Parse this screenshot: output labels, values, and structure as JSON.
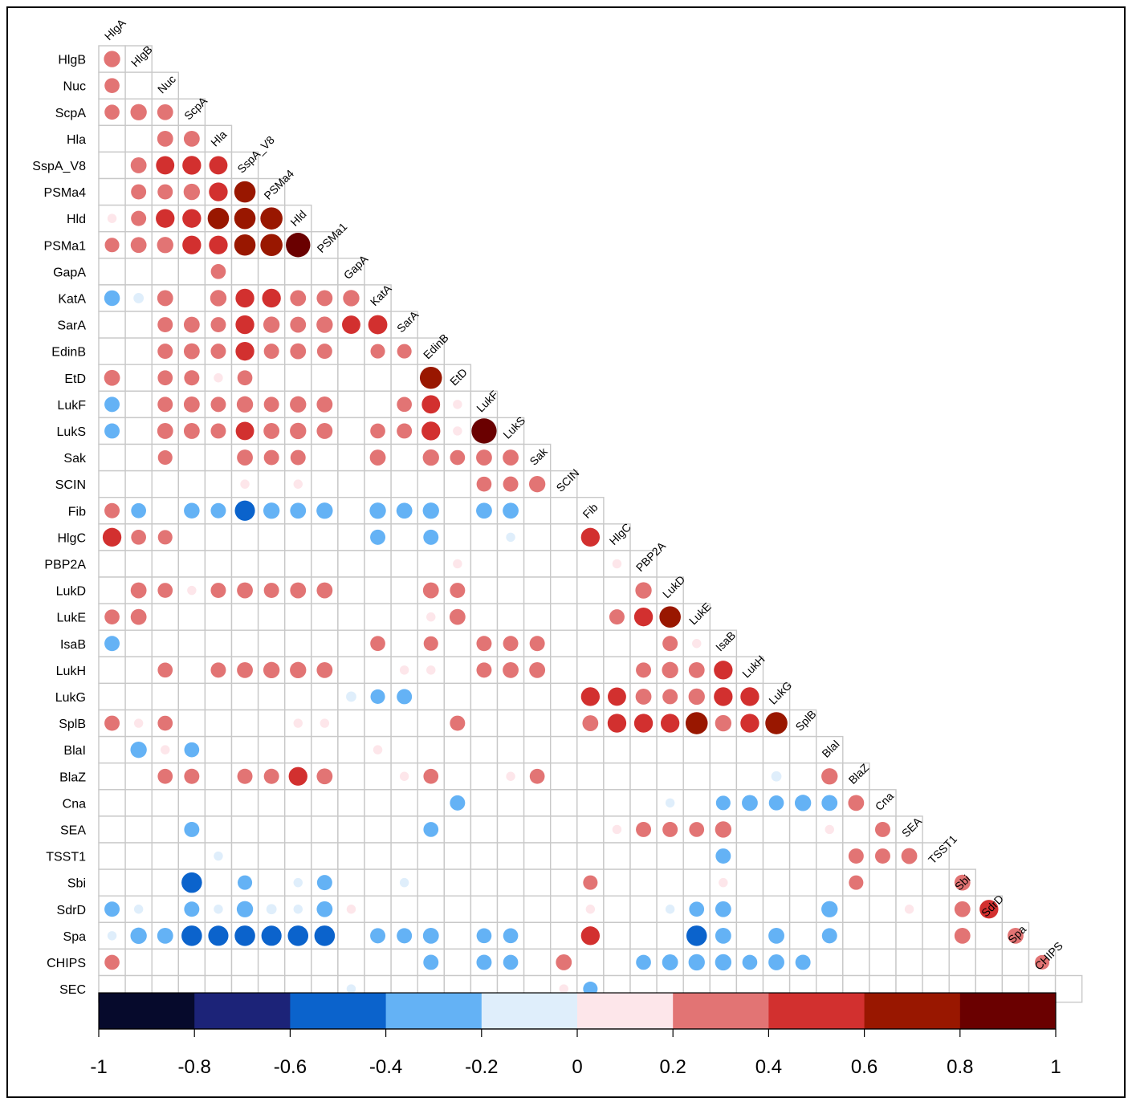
{
  "chart_data": {
    "type": "heatmap",
    "style": "correlation-matrix-lower-triangle-circles",
    "title": "",
    "row_labels": [
      "HlgB",
      "Nuc",
      "ScpA",
      "Hla",
      "SspA_V8",
      "PSMa4",
      "Hld",
      "PSMa1",
      "GapA",
      "KatA",
      "SarA",
      "EdinB",
      "EtD",
      "LukF",
      "LukS",
      "Sak",
      "SCIN",
      "Fib",
      "HlgC",
      "PBP2A",
      "LukD",
      "LukE",
      "IsaB",
      "LukH",
      "LukG",
      "SplB",
      "BlaI",
      "BlaZ",
      "Cna",
      "SEA",
      "TSST1",
      "Sbi",
      "SdrD",
      "Spa",
      "CHIPS",
      "SEC"
    ],
    "col_labels": [
      "HlgA",
      "HlgB",
      "Nuc",
      "ScpA",
      "Hla",
      "SspA_V8",
      "PSMa4",
      "Hld",
      "PSMa1",
      "GapA",
      "KatA",
      "SarA",
      "EdinB",
      "EtD",
      "LukF",
      "LukS",
      "Sak",
      "SCIN",
      "Fib",
      "HlgC",
      "PBP2A",
      "LukD",
      "LukE",
      "IsaB",
      "LukH",
      "LukG",
      "SplB",
      "BlaI",
      "BlaZ",
      "Cna",
      "SEA",
      "TSST1",
      "Sbi",
      "SdrD",
      "Spa",
      "CHIPS"
    ],
    "cells": [
      [
        0,
        0,
        0.38
      ],
      [
        1,
        0,
        0.32
      ],
      [
        2,
        0,
        0.32
      ],
      [
        2,
        1,
        0.38
      ],
      [
        2,
        2,
        0.36
      ],
      [
        3,
        2,
        0.36
      ],
      [
        3,
        3,
        0.36
      ],
      [
        4,
        1,
        0.36
      ],
      [
        4,
        2,
        0.48
      ],
      [
        4,
        3,
        0.5
      ],
      [
        4,
        4,
        0.48
      ],
      [
        5,
        1,
        0.33
      ],
      [
        5,
        2,
        0.33
      ],
      [
        5,
        3,
        0.38
      ],
      [
        5,
        4,
        0.5
      ],
      [
        5,
        5,
        0.65
      ],
      [
        6,
        0,
        0.12
      ],
      [
        6,
        1,
        0.33
      ],
      [
        6,
        2,
        0.5
      ],
      [
        6,
        3,
        0.5
      ],
      [
        6,
        4,
        0.65
      ],
      [
        6,
        5,
        0.65
      ],
      [
        6,
        6,
        0.7
      ],
      [
        7,
        0,
        0.3
      ],
      [
        7,
        1,
        0.36
      ],
      [
        7,
        2,
        0.38
      ],
      [
        7,
        3,
        0.5
      ],
      [
        7,
        4,
        0.5
      ],
      [
        7,
        5,
        0.65
      ],
      [
        7,
        6,
        0.7
      ],
      [
        7,
        7,
        0.85
      ],
      [
        8,
        4,
        0.32
      ],
      [
        9,
        0,
        -0.35
      ],
      [
        9,
        1,
        -0.15
      ],
      [
        9,
        2,
        0.36
      ],
      [
        9,
        4,
        0.38
      ],
      [
        9,
        5,
        0.5
      ],
      [
        9,
        6,
        0.5
      ],
      [
        9,
        7,
        0.36
      ],
      [
        9,
        8,
        0.36
      ],
      [
        9,
        9,
        0.38
      ],
      [
        10,
        2,
        0.33
      ],
      [
        10,
        3,
        0.36
      ],
      [
        10,
        4,
        0.33
      ],
      [
        10,
        5,
        0.5
      ],
      [
        10,
        6,
        0.38
      ],
      [
        10,
        7,
        0.36
      ],
      [
        10,
        8,
        0.38
      ],
      [
        10,
        9,
        0.48
      ],
      [
        10,
        10,
        0.52
      ],
      [
        11,
        2,
        0.33
      ],
      [
        11,
        3,
        0.36
      ],
      [
        11,
        4,
        0.33
      ],
      [
        11,
        5,
        0.5
      ],
      [
        11,
        6,
        0.33
      ],
      [
        11,
        7,
        0.36
      ],
      [
        11,
        8,
        0.33
      ],
      [
        11,
        10,
        0.3
      ],
      [
        11,
        11,
        0.3
      ],
      [
        12,
        0,
        0.36
      ],
      [
        12,
        2,
        0.32
      ],
      [
        12,
        3,
        0.33
      ],
      [
        12,
        4,
        0.12
      ],
      [
        12,
        5,
        0.32
      ],
      [
        12,
        12,
        0.7
      ],
      [
        13,
        0,
        -0.33
      ],
      [
        13,
        2,
        0.33
      ],
      [
        13,
        3,
        0.36
      ],
      [
        13,
        4,
        0.33
      ],
      [
        13,
        5,
        0.38
      ],
      [
        13,
        6,
        0.33
      ],
      [
        13,
        7,
        0.38
      ],
      [
        13,
        8,
        0.36
      ],
      [
        13,
        11,
        0.32
      ],
      [
        13,
        12,
        0.48
      ],
      [
        13,
        13,
        0.12
      ],
      [
        14,
        0,
        -0.33
      ],
      [
        14,
        2,
        0.36
      ],
      [
        14,
        3,
        0.36
      ],
      [
        14,
        4,
        0.33
      ],
      [
        14,
        5,
        0.48
      ],
      [
        14,
        6,
        0.36
      ],
      [
        14,
        7,
        0.38
      ],
      [
        14,
        8,
        0.36
      ],
      [
        14,
        10,
        0.32
      ],
      [
        14,
        11,
        0.33
      ],
      [
        14,
        12,
        0.5
      ],
      [
        14,
        13,
        0.12
      ],
      [
        14,
        14,
        0.9
      ],
      [
        15,
        2,
        0.3
      ],
      [
        15,
        5,
        0.36
      ],
      [
        15,
        6,
        0.33
      ],
      [
        15,
        7,
        0.33
      ],
      [
        15,
        10,
        0.36
      ],
      [
        15,
        12,
        0.38
      ],
      [
        15,
        13,
        0.32
      ],
      [
        15,
        14,
        0.36
      ],
      [
        15,
        15,
        0.36
      ],
      [
        16,
        5,
        0.12
      ],
      [
        16,
        7,
        0.12
      ],
      [
        16,
        14,
        0.32
      ],
      [
        16,
        15,
        0.33
      ],
      [
        16,
        16,
        0.38
      ],
      [
        17,
        0,
        0.33
      ],
      [
        17,
        1,
        -0.32
      ],
      [
        17,
        3,
        -0.35
      ],
      [
        17,
        4,
        -0.33
      ],
      [
        17,
        5,
        -0.58
      ],
      [
        17,
        6,
        -0.38
      ],
      [
        17,
        7,
        -0.36
      ],
      [
        17,
        8,
        -0.38
      ],
      [
        17,
        10,
        -0.38
      ],
      [
        17,
        11,
        -0.36
      ],
      [
        17,
        12,
        -0.38
      ],
      [
        17,
        14,
        -0.36
      ],
      [
        17,
        15,
        -0.36
      ],
      [
        18,
        0,
        0.5
      ],
      [
        18,
        1,
        0.32
      ],
      [
        18,
        2,
        0.3
      ],
      [
        18,
        10,
        -0.33
      ],
      [
        18,
        12,
        -0.33
      ],
      [
        18,
        15,
        -0.12
      ],
      [
        18,
        18,
        0.5
      ],
      [
        19,
        13,
        0.12
      ],
      [
        19,
        19,
        0.12
      ],
      [
        20,
        1,
        0.36
      ],
      [
        20,
        2,
        0.32
      ],
      [
        20,
        3,
        0.12
      ],
      [
        20,
        4,
        0.33
      ],
      [
        20,
        5,
        0.36
      ],
      [
        20,
        6,
        0.33
      ],
      [
        20,
        7,
        0.36
      ],
      [
        20,
        8,
        0.36
      ],
      [
        20,
        12,
        0.36
      ],
      [
        20,
        13,
        0.33
      ],
      [
        20,
        20,
        0.38
      ],
      [
        21,
        0,
        0.32
      ],
      [
        21,
        1,
        0.36
      ],
      [
        21,
        12,
        0.12
      ],
      [
        21,
        13,
        0.36
      ],
      [
        21,
        19,
        0.33
      ],
      [
        21,
        20,
        0.5
      ],
      [
        21,
        21,
        0.65
      ],
      [
        22,
        0,
        -0.33
      ],
      [
        22,
        10,
        0.32
      ],
      [
        22,
        12,
        0.3
      ],
      [
        22,
        14,
        0.33
      ],
      [
        22,
        15,
        0.33
      ],
      [
        22,
        16,
        0.33
      ],
      [
        22,
        21,
        0.33
      ],
      [
        22,
        22,
        0.12
      ],
      [
        23,
        2,
        0.32
      ],
      [
        23,
        4,
        0.33
      ],
      [
        23,
        5,
        0.36
      ],
      [
        23,
        6,
        0.38
      ],
      [
        23,
        7,
        0.38
      ],
      [
        23,
        8,
        0.36
      ],
      [
        23,
        11,
        0.12
      ],
      [
        23,
        12,
        0.12
      ],
      [
        23,
        14,
        0.33
      ],
      [
        23,
        15,
        0.36
      ],
      [
        23,
        16,
        0.36
      ],
      [
        23,
        20,
        0.33
      ],
      [
        23,
        21,
        0.38
      ],
      [
        23,
        22,
        0.36
      ],
      [
        23,
        23,
        0.5
      ],
      [
        24,
        9,
        -0.15
      ],
      [
        24,
        10,
        -0.3
      ],
      [
        24,
        11,
        -0.33
      ],
      [
        24,
        18,
        0.5
      ],
      [
        24,
        19,
        0.48
      ],
      [
        24,
        20,
        0.36
      ],
      [
        24,
        21,
        0.33
      ],
      [
        24,
        22,
        0.38
      ],
      [
        24,
        23,
        0.5
      ],
      [
        24,
        24,
        0.5
      ],
      [
        25,
        0,
        0.33
      ],
      [
        25,
        1,
        0.12
      ],
      [
        25,
        2,
        0.32
      ],
      [
        25,
        7,
        0.12
      ],
      [
        25,
        8,
        0.12
      ],
      [
        25,
        13,
        0.33
      ],
      [
        25,
        18,
        0.36
      ],
      [
        25,
        19,
        0.5
      ],
      [
        25,
        20,
        0.5
      ],
      [
        25,
        21,
        0.5
      ],
      [
        25,
        22,
        0.7
      ],
      [
        25,
        23,
        0.38
      ],
      [
        25,
        24,
        0.5
      ],
      [
        25,
        25,
        0.7
      ],
      [
        26,
        1,
        -0.38
      ],
      [
        26,
        2,
        0.12
      ],
      [
        26,
        3,
        -0.32
      ],
      [
        26,
        10,
        0.12
      ],
      [
        27,
        2,
        0.32
      ],
      [
        27,
        3,
        0.33
      ],
      [
        27,
        5,
        0.33
      ],
      [
        27,
        6,
        0.33
      ],
      [
        27,
        7,
        0.5
      ],
      [
        27,
        8,
        0.36
      ],
      [
        27,
        11,
        0.12
      ],
      [
        27,
        12,
        0.32
      ],
      [
        27,
        15,
        0.12
      ],
      [
        27,
        16,
        0.32
      ],
      [
        27,
        25,
        -0.15
      ],
      [
        27,
        27,
        0.38
      ],
      [
        28,
        13,
        -0.33
      ],
      [
        28,
        21,
        -0.12
      ],
      [
        28,
        23,
        -0.3
      ],
      [
        28,
        24,
        -0.36
      ],
      [
        28,
        25,
        -0.32
      ],
      [
        28,
        26,
        -0.38
      ],
      [
        28,
        27,
        -0.36
      ],
      [
        28,
        28,
        0.36
      ],
      [
        29,
        3,
        -0.33
      ],
      [
        29,
        12,
        -0.32
      ],
      [
        29,
        19,
        0.12
      ],
      [
        29,
        20,
        0.33
      ],
      [
        29,
        21,
        0.33
      ],
      [
        29,
        22,
        0.32
      ],
      [
        29,
        23,
        0.38
      ],
      [
        29,
        27,
        0.12
      ],
      [
        29,
        29,
        0.33
      ],
      [
        30,
        4,
        -0.12
      ],
      [
        30,
        23,
        -0.33
      ],
      [
        30,
        28,
        0.33
      ],
      [
        30,
        29,
        0.33
      ],
      [
        30,
        30,
        0.36
      ],
      [
        31,
        3,
        -0.6
      ],
      [
        31,
        5,
        -0.3
      ],
      [
        31,
        7,
        -0.12
      ],
      [
        31,
        8,
        -0.33
      ],
      [
        31,
        11,
        -0.12
      ],
      [
        31,
        18,
        0.3
      ],
      [
        31,
        23,
        0.12
      ],
      [
        31,
        28,
        0.3
      ],
      [
        31,
        32,
        0.36
      ],
      [
        32,
        0,
        -0.33
      ],
      [
        32,
        1,
        -0.12
      ],
      [
        32,
        3,
        -0.33
      ],
      [
        32,
        4,
        -0.12
      ],
      [
        32,
        5,
        -0.38
      ],
      [
        32,
        6,
        -0.15
      ],
      [
        32,
        7,
        -0.12
      ],
      [
        32,
        8,
        -0.36
      ],
      [
        32,
        9,
        0.12
      ],
      [
        32,
        18,
        0.12
      ],
      [
        32,
        21,
        -0.12
      ],
      [
        32,
        22,
        -0.32
      ],
      [
        32,
        23,
        -0.36
      ],
      [
        32,
        27,
        -0.38
      ],
      [
        32,
        30,
        0.12
      ],
      [
        32,
        32,
        0.36
      ],
      [
        32,
        33,
        0.5
      ],
      [
        33,
        0,
        -0.12
      ],
      [
        33,
        1,
        -0.38
      ],
      [
        33,
        2,
        -0.36
      ],
      [
        33,
        3,
        -0.6
      ],
      [
        33,
        4,
        -0.58
      ],
      [
        33,
        5,
        -0.6
      ],
      [
        33,
        6,
        -0.58
      ],
      [
        33,
        7,
        -0.6
      ],
      [
        33,
        8,
        -0.6
      ],
      [
        33,
        10,
        -0.33
      ],
      [
        33,
        11,
        -0.33
      ],
      [
        33,
        12,
        -0.36
      ],
      [
        33,
        14,
        -0.32
      ],
      [
        33,
        15,
        -0.32
      ],
      [
        33,
        18,
        0.5
      ],
      [
        33,
        22,
        -0.6
      ],
      [
        33,
        23,
        -0.36
      ],
      [
        33,
        25,
        -0.36
      ],
      [
        33,
        27,
        -0.33
      ],
      [
        33,
        32,
        0.36
      ],
      [
        33,
        34,
        0.36
      ],
      [
        34,
        0,
        0.32
      ],
      [
        34,
        12,
        -0.33
      ],
      [
        34,
        14,
        -0.33
      ],
      [
        34,
        15,
        -0.32
      ],
      [
        34,
        17,
        0.36
      ],
      [
        34,
        20,
        -0.32
      ],
      [
        34,
        21,
        -0.36
      ],
      [
        34,
        22,
        -0.38
      ],
      [
        34,
        23,
        -0.38
      ],
      [
        34,
        24,
        -0.32
      ],
      [
        34,
        25,
        -0.36
      ],
      [
        34,
        26,
        -0.33
      ],
      [
        34,
        35,
        0.3
      ],
      [
        35,
        9,
        -0.12
      ],
      [
        35,
        17,
        0.12
      ],
      [
        35,
        18,
        -0.3
      ]
    ],
    "colorbar": {
      "ticks": [
        "-1",
        "-0.8",
        "-0.6",
        "-0.4",
        "-0.2",
        "0",
        "0.2",
        "0.4",
        "0.6",
        "0.8",
        "1"
      ],
      "range": [
        -1,
        1
      ],
      "bins": 10
    },
    "palette": {
      "-1.0": "#060a2c",
      "-0.8": "#1c2378",
      "-0.6": "#0b63cc",
      "-0.4": "#64b2f5",
      "-0.2": "#dfeefb",
      "0.0": "#fde6ea",
      "0.2": "#e27474",
      "0.4": "#d2302f",
      "0.6": "#991700",
      "0.8": "#6a0000"
    }
  }
}
